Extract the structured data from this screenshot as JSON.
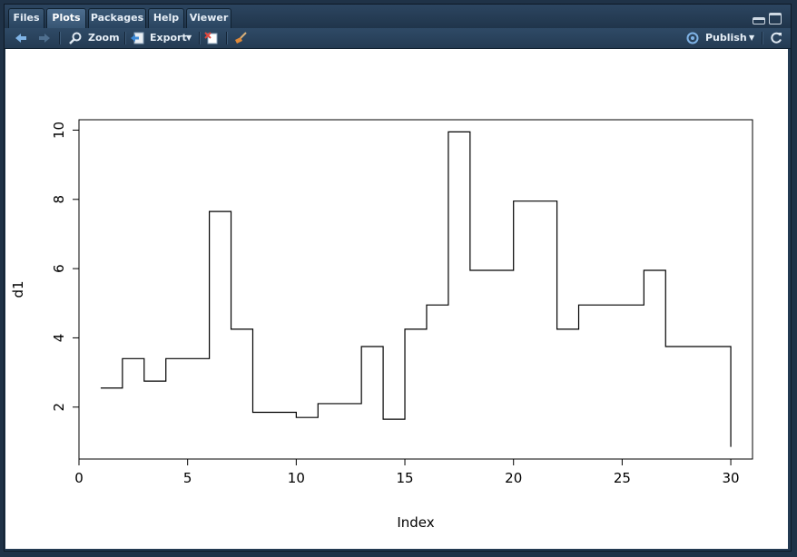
{
  "tabs": [
    {
      "label": "Files",
      "active": false
    },
    {
      "label": "Plots",
      "active": true
    },
    {
      "label": "Packages",
      "active": false
    },
    {
      "label": "Help",
      "active": false
    },
    {
      "label": "Viewer",
      "active": false
    }
  ],
  "toolbar": {
    "zoom_label": "Zoom",
    "export_label": "Export",
    "publish_label": "Publish"
  },
  "icons": {
    "back": "arrow-left-icon",
    "forward": "arrow-right-icon",
    "zoom": "magnifier-icon",
    "export": "export-icon",
    "remove": "remove-plot-icon",
    "clear": "broom-icon",
    "publish": "publish-icon",
    "refresh": "refresh-icon"
  },
  "chart_data": {
    "type": "line",
    "line_style": "step",
    "xlabel": "Index",
    "ylabel": "d1",
    "x": [
      1,
      2,
      3,
      4,
      5,
      6,
      7,
      8,
      9,
      10,
      11,
      12,
      13,
      14,
      15,
      16,
      17,
      18,
      19,
      20,
      21,
      22,
      23,
      24,
      25,
      26,
      27,
      28,
      29,
      30
    ],
    "y": [
      2.55,
      3.4,
      2.75,
      3.4,
      3.4,
      7.65,
      4.25,
      1.85,
      1.85,
      1.7,
      2.1,
      2.1,
      3.75,
      1.65,
      4.25,
      4.95,
      9.95,
      5.95,
      5.95,
      7.95,
      7.95,
      4.25,
      4.95,
      4.95,
      4.95,
      5.95,
      3.75,
      3.75,
      3.75,
      0.85
    ],
    "xlim": [
      0,
      31
    ],
    "ylim": [
      0.5,
      10.3
    ],
    "xticks": [
      0,
      5,
      10,
      15,
      20,
      25,
      30
    ],
    "yticks": [
      2,
      4,
      6,
      8,
      10
    ],
    "grid": false
  }
}
